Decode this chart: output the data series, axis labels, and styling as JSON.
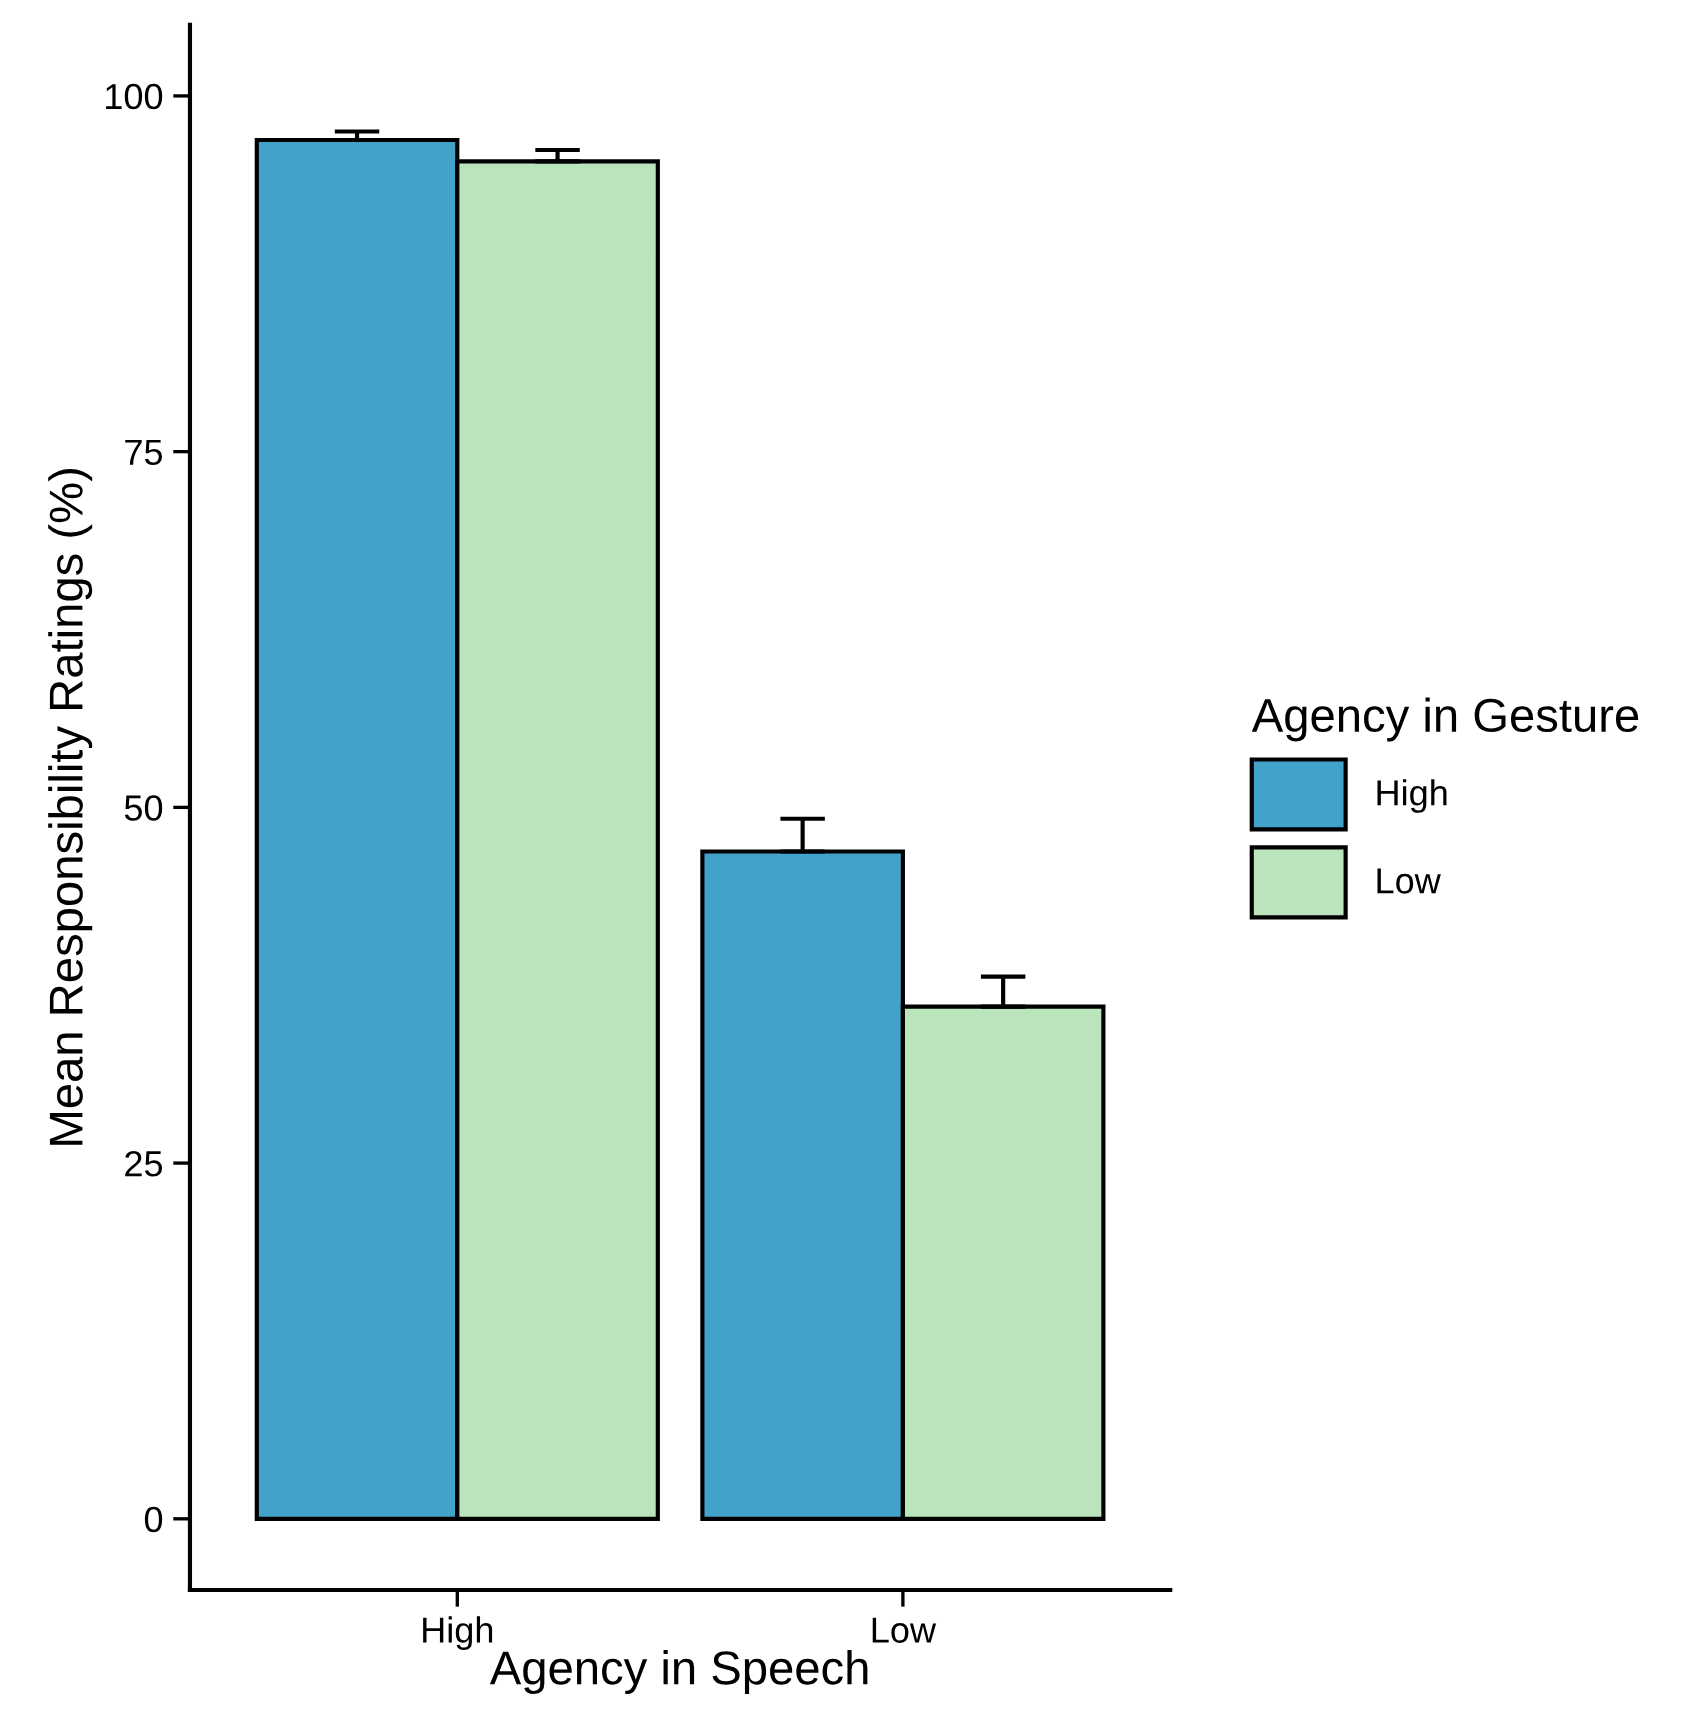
{
  "chart_data": {
    "type": "bar",
    "xlabel": "Agency in Speech",
    "ylabel": "Mean Responsibility Ratings (%)",
    "legend_title": "Agency in Gesture",
    "categories": [
      "High",
      "Low"
    ],
    "series": [
      {
        "name": "High",
        "color": "#43a2ca",
        "values": [
          96.9,
          46.9
        ],
        "errors": [
          [
            96.9,
            97.5
          ],
          [
            46.9,
            49.2
          ]
        ]
      },
      {
        "name": "Low",
        "color": "#bae4bc",
        "values": [
          95.4,
          36.0
        ],
        "errors": [
          [
            95.4,
            96.2
          ],
          [
            36.0,
            38.1
          ]
        ]
      }
    ],
    "ylim": [
      -5,
      105
    ],
    "yticks": [
      0,
      25,
      50,
      75,
      100
    ],
    "grid": false,
    "legend": "right"
  }
}
